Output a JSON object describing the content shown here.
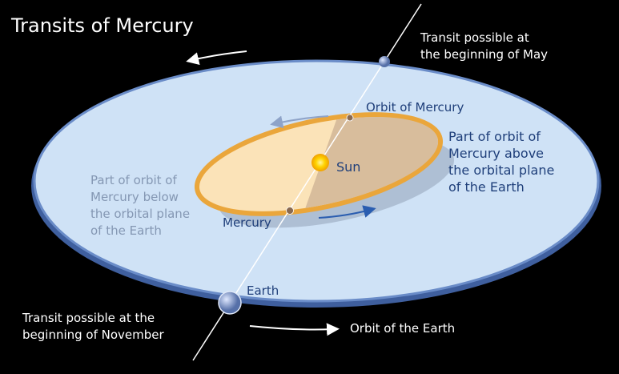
{
  "title": "Transits of Mercury",
  "labels": {
    "may": [
      "Transit possible at",
      "the beginning of May"
    ],
    "orbit_mercury": "Orbit of Mercury",
    "above": [
      "Part of orbit of",
      "Mercury above",
      "the orbital plane",
      "of the Earth"
    ],
    "sun": "Sun",
    "below": [
      "Part of orbit of",
      "Mercury below",
      "the orbital plane",
      "of the Earth"
    ],
    "mercury": "Mercury",
    "earth": "Earth",
    "november": [
      "Transit possible at the",
      "beginning of November"
    ],
    "orbit_earth": "Orbit of the Earth"
  }
}
